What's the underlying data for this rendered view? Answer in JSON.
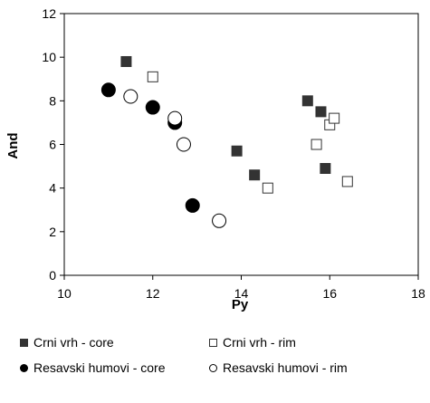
{
  "chart_data": {
    "type": "scatter",
    "title": "",
    "xlabel": "Py",
    "ylabel": "And",
    "xlim": [
      10,
      18
    ],
    "ylim": [
      0,
      12
    ],
    "xticks": [
      "10",
      "12",
      "14",
      "16",
      "18"
    ],
    "yticks": [
      "0",
      "2",
      "4",
      "6",
      "8",
      "10",
      "12"
    ],
    "grid": false,
    "legend_position": "bottom",
    "series": [
      {
        "name": "Crni vrh - core",
        "marker": "square-filled",
        "color": "#333333",
        "points": [
          [
            11.4,
            9.8
          ],
          [
            13.9,
            5.7
          ],
          [
            14.3,
            4.6
          ],
          [
            15.5,
            8.0
          ],
          [
            15.8,
            7.5
          ],
          [
            15.9,
            4.9
          ]
        ]
      },
      {
        "name": "Crni vrh - rim",
        "marker": "square-open",
        "color": "#333333",
        "points": [
          [
            12.0,
            9.1
          ],
          [
            14.6,
            4.0
          ],
          [
            15.7,
            6.0
          ],
          [
            16.0,
            6.9
          ],
          [
            16.1,
            7.2
          ],
          [
            16.4,
            4.3
          ]
        ]
      },
      {
        "name": "Resavski humovi - core",
        "marker": "circle-filled",
        "color": "#000000",
        "points": [
          [
            11.0,
            8.5
          ],
          [
            12.0,
            7.7
          ],
          [
            12.5,
            7.0
          ],
          [
            12.9,
            3.2
          ]
        ]
      },
      {
        "name": "Resavski humovi - rim",
        "marker": "circle-open",
        "color": "#000000",
        "points": [
          [
            11.5,
            8.2
          ],
          [
            12.5,
            7.2
          ],
          [
            12.7,
            6.0
          ],
          [
            13.5,
            2.5
          ]
        ]
      }
    ]
  }
}
